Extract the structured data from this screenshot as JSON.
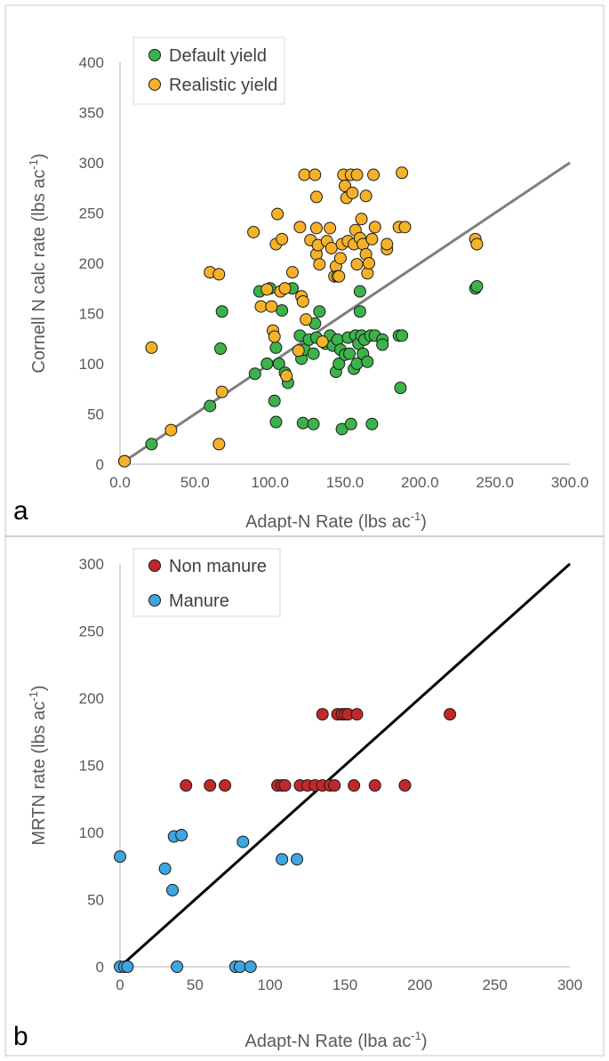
{
  "chart_data": [
    {
      "type": "scatter",
      "panel_label": "a",
      "xlabel": {
        "main": "Adapt-N Rate (lbs ac",
        "sup": "-1",
        "end": ")"
      },
      "ylabel": {
        "main": "Cornell N calc rate (lbs ac",
        "sup": "-1",
        "end": ")"
      },
      "xlim": [
        0,
        300
      ],
      "ylim": [
        0,
        400
      ],
      "xticks": [
        "0.0",
        "50.0",
        "100.0",
        "150.0",
        "200.0",
        "250.0",
        "300.0"
      ],
      "yticks": [
        "0",
        "50",
        "100",
        "150",
        "200",
        "250",
        "300",
        "350",
        "400"
      ],
      "grid": false,
      "legend_position": "top-left",
      "fit_line": {
        "from": [
          0,
          0
        ],
        "to": [
          300,
          300
        ],
        "color": "#7f7f7f"
      },
      "series": [
        {
          "name": "Default yield",
          "color": "#3cb34a",
          "points": [
            [
              3,
              3
            ],
            [
              21,
              20
            ],
            [
              60,
              58
            ],
            [
              67,
              115
            ],
            [
              68,
              152
            ],
            [
              90,
              90
            ],
            [
              93,
              172
            ],
            [
              98,
              100
            ],
            [
              100,
              175
            ],
            [
              103,
              63
            ],
            [
              104,
              42
            ],
            [
              104,
              116
            ],
            [
              106,
              100
            ],
            [
              108,
              153
            ],
            [
              110,
              91
            ],
            [
              112,
              81
            ],
            [
              115,
              175
            ],
            [
              120,
              128
            ],
            [
              121,
              105
            ],
            [
              122,
              41
            ],
            [
              123,
              114
            ],
            [
              126,
              124
            ],
            [
              129,
              110
            ],
            [
              129,
              40
            ],
            [
              130,
              140
            ],
            [
              131,
              126
            ],
            [
              133,
              152
            ],
            [
              137,
              120
            ],
            [
              140,
              128
            ],
            [
              142,
              118
            ],
            [
              144,
              92
            ],
            [
              145,
              124
            ],
            [
              146,
              100
            ],
            [
              147,
              114
            ],
            [
              148,
              35
            ],
            [
              150,
              109
            ],
            [
              152,
              126
            ],
            [
              153,
              110
            ],
            [
              154,
              40
            ],
            [
              156,
              95
            ],
            [
              157,
              128
            ],
            [
              158,
              100
            ],
            [
              159,
              120
            ],
            [
              160,
              152
            ],
            [
              160,
              172
            ],
            [
              161,
              128
            ],
            [
              162,
              110
            ],
            [
              163,
              124
            ],
            [
              165,
              102
            ],
            [
              167,
              128
            ],
            [
              168,
              40
            ],
            [
              170,
              128
            ],
            [
              175,
              124
            ],
            [
              175,
              119
            ],
            [
              186,
              128
            ],
            [
              187,
              76
            ],
            [
              188,
              128
            ],
            [
              237,
              175
            ],
            [
              238,
              177
            ]
          ]
        },
        {
          "name": "Realistic yield",
          "color": "#f5b228",
          "points": [
            [
              3,
              3
            ],
            [
              21,
              116
            ],
            [
              34,
              34
            ],
            [
              60,
              191
            ],
            [
              66,
              189
            ],
            [
              66,
              20
            ],
            [
              68,
              72
            ],
            [
              89,
              231
            ],
            [
              94,
              157
            ],
            [
              98,
              174
            ],
            [
              101,
              157
            ],
            [
              102,
              133
            ],
            [
              103,
              127
            ],
            [
              104,
              219
            ],
            [
              105,
              249
            ],
            [
              107,
              172
            ],
            [
              108,
              224
            ],
            [
              110,
              175
            ],
            [
              111,
              88
            ],
            [
              115,
              191
            ],
            [
              119,
              113
            ],
            [
              120,
              236
            ],
            [
              121,
              167
            ],
            [
              122,
              162
            ],
            [
              123,
              288
            ],
            [
              124,
              144
            ],
            [
              127,
              223
            ],
            [
              130,
              288
            ],
            [
              131,
              235
            ],
            [
              131,
              266
            ],
            [
              131,
              209
            ],
            [
              132,
              218
            ],
            [
              133,
              199
            ],
            [
              135,
              122
            ],
            [
              138,
              222
            ],
            [
              140,
              235
            ],
            [
              141,
              215
            ],
            [
              143,
              187
            ],
            [
              144,
              197
            ],
            [
              145,
              187
            ],
            [
              146,
              187
            ],
            [
              147,
              205
            ],
            [
              148,
              219
            ],
            [
              149,
              288
            ],
            [
              150,
              277
            ],
            [
              151,
              265
            ],
            [
              152,
              222
            ],
            [
              154,
              288
            ],
            [
              155,
              270
            ],
            [
              156,
              219
            ],
            [
              157,
              233
            ],
            [
              158,
              288
            ],
            [
              158,
              199
            ],
            [
              160,
              225
            ],
            [
              161,
              244
            ],
            [
              162,
              219
            ],
            [
              164,
              267
            ],
            [
              164,
              209
            ],
            [
              165,
              190
            ],
            [
              166,
              200
            ],
            [
              168,
              224
            ],
            [
              169,
              288
            ],
            [
              170,
              236
            ],
            [
              178,
              214
            ],
            [
              178,
              219
            ],
            [
              186,
              236
            ],
            [
              188,
              290
            ],
            [
              190,
              236
            ],
            [
              237,
              224
            ],
            [
              238,
              219
            ]
          ]
        }
      ]
    },
    {
      "type": "scatter",
      "panel_label": "b",
      "xlabel": {
        "main": "Adapt-N Rate (lba ac",
        "sup": "-1",
        "end": ")"
      },
      "ylabel": {
        "main": "MRTN rate (lbs ac",
        "sup": "-1",
        "end": ")"
      },
      "xlim": [
        0,
        300
      ],
      "ylim": [
        0,
        300
      ],
      "xticks": [
        "0",
        "50",
        "100",
        "150",
        "200",
        "250",
        "300"
      ],
      "yticks": [
        "0",
        "50",
        "100",
        "150",
        "200",
        "250",
        "300"
      ],
      "grid": false,
      "legend_position": "top-left",
      "fit_line": {
        "from": [
          0,
          0
        ],
        "to": [
          300,
          300
        ],
        "color": "#000000"
      },
      "series": [
        {
          "name": "Non manure",
          "color": "#c0282a",
          "points": [
            [
              44,
              135
            ],
            [
              60,
              135
            ],
            [
              70,
              135
            ],
            [
              105,
              135
            ],
            [
              108,
              135
            ],
            [
              110,
              135
            ],
            [
              120,
              135
            ],
            [
              125,
              135
            ],
            [
              130,
              135
            ],
            [
              135,
              188
            ],
            [
              135,
              135
            ],
            [
              140,
              135
            ],
            [
              143,
              135
            ],
            [
              145,
              188
            ],
            [
              148,
              188
            ],
            [
              150,
              188
            ],
            [
              152,
              188
            ],
            [
              158,
              188
            ],
            [
              156,
              135
            ],
            [
              170,
              135
            ],
            [
              190,
              135
            ],
            [
              220,
              188
            ]
          ]
        },
        {
          "name": "Manure",
          "color": "#3ea6e0",
          "points": [
            [
              0,
              82
            ],
            [
              0,
              0
            ],
            [
              3,
              0
            ],
            [
              5,
              0
            ],
            [
              30,
              73
            ],
            [
              35,
              57
            ],
            [
              36,
              97
            ],
            [
              38,
              0
            ],
            [
              41,
              98
            ],
            [
              77,
              0
            ],
            [
              80,
              0
            ],
            [
              82,
              93
            ],
            [
              87,
              0
            ],
            [
              108,
              80
            ],
            [
              118,
              80
            ]
          ]
        }
      ]
    }
  ]
}
